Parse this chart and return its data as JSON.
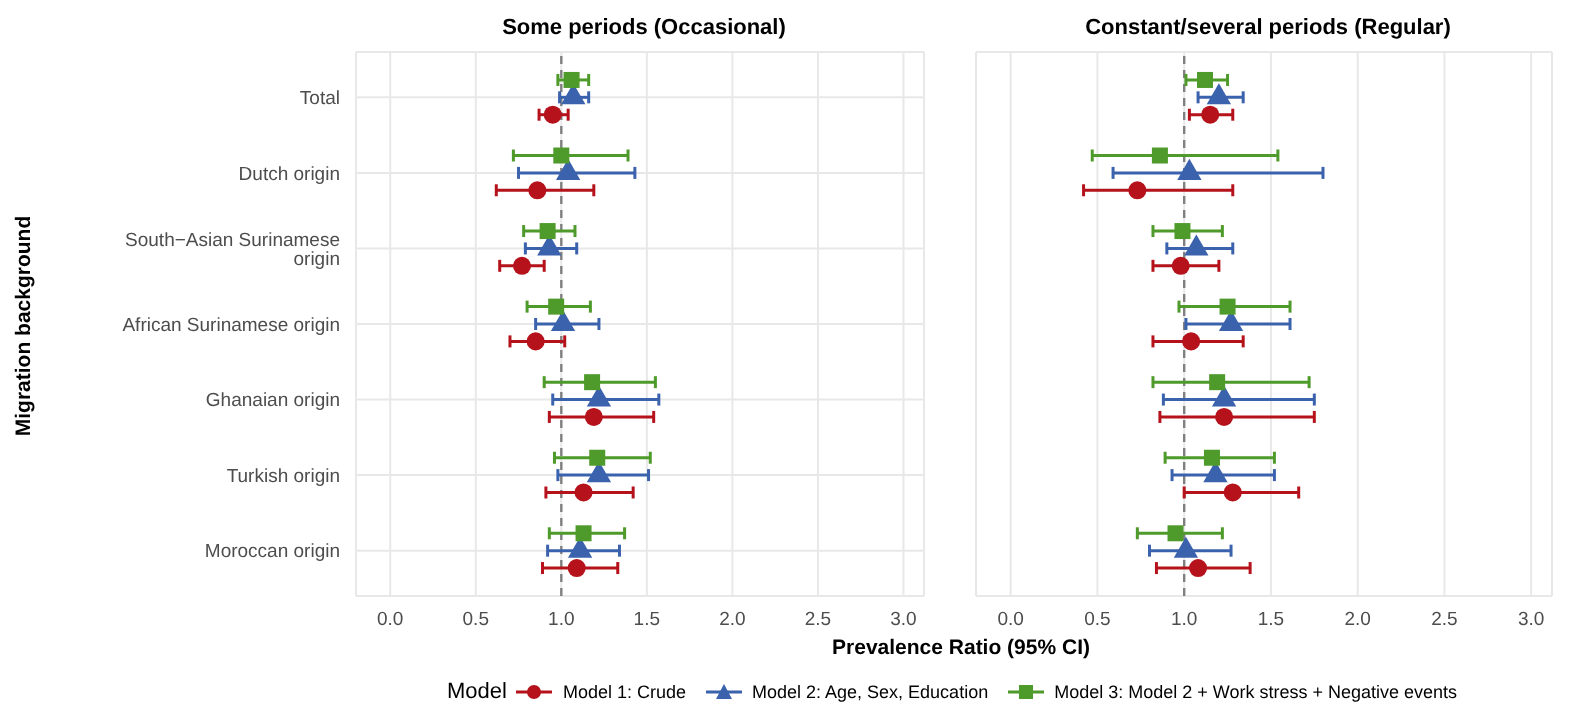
{
  "chart_data": [
    {
      "type": "scatter",
      "orientation": "horizontal",
      "title": "Some periods (Occasional)",
      "xlabel": "Prevalence Ratio (95% CI)",
      "ylabel": "Migration background",
      "legend_title": "Model",
      "legend": "bottom",
      "grid": true,
      "categories": [
        "Total",
        "Dutch origin",
        "South−Asian Surinamese origin",
        "African Surinamese origin",
        "Ghanaian origin",
        "Turkish origin",
        "Moroccan origin"
      ],
      "xlim": [
        -0.2,
        3.12
      ],
      "xticks": [
        {
          "value": 0,
          "label": "0.0"
        },
        {
          "value": 0.5,
          "label": "0.5"
        },
        {
          "value": 1,
          "label": "1.0"
        },
        {
          "value": 1.5,
          "label": "1.5"
        },
        {
          "value": 2,
          "label": "2.0"
        },
        {
          "value": 2.5,
          "label": "2.5"
        },
        {
          "value": 3,
          "label": "3.0"
        }
      ],
      "ref_lines": [
        {
          "axis": "x",
          "value": 1,
          "line_style": "dashed",
          "color": "#808080"
        }
      ],
      "series": [
        {
          "name": "Model 1: Crude",
          "color": "#b5121b",
          "marker": "circle",
          "values": [
            0.95,
            0.86,
            0.77,
            0.85,
            1.19,
            1.13,
            1.09
          ],
          "errors": [
            [
              0.87,
              1.04
            ],
            [
              0.62,
              1.19
            ],
            [
              0.64,
              0.9
            ],
            [
              0.7,
              1.02
            ],
            [
              0.93,
              1.54
            ],
            [
              0.91,
              1.42
            ],
            [
              0.89,
              1.33
            ]
          ]
        },
        {
          "name": "Model 2: Age, Sex, Education",
          "color": "#3b62ad",
          "marker": "triangle",
          "values": [
            1.07,
            1.04,
            0.93,
            1.01,
            1.22,
            1.22,
            1.11
          ],
          "errors": [
            [
              0.99,
              1.16
            ],
            [
              0.75,
              1.43
            ],
            [
              0.79,
              1.09
            ],
            [
              0.85,
              1.22
            ],
            [
              0.95,
              1.57
            ],
            [
              0.98,
              1.51
            ],
            [
              0.92,
              1.34
            ]
          ]
        },
        {
          "name": "Model 3: Model 2 + Work stress + Negative events",
          "color": "#4e9a2a",
          "marker": "square",
          "values": [
            1.06,
            1.0,
            0.92,
            0.97,
            1.18,
            1.21,
            1.13
          ],
          "errors": [
            [
              0.98,
              1.16
            ],
            [
              0.72,
              1.39
            ],
            [
              0.78,
              1.08
            ],
            [
              0.8,
              1.17
            ],
            [
              0.9,
              1.55
            ],
            [
              0.96,
              1.52
            ],
            [
              0.93,
              1.37
            ]
          ]
        }
      ]
    },
    {
      "type": "scatter",
      "orientation": "horizontal",
      "title": "Constant/several periods (Regular)",
      "grid": true,
      "tick_labels": "x",
      "xlim": [
        -0.2,
        3.12
      ],
      "xticks": [
        {
          "value": 0,
          "label": "0.0"
        },
        {
          "value": 0.5,
          "label": "0.5"
        },
        {
          "value": 1,
          "label": "1.0"
        },
        {
          "value": 1.5,
          "label": "1.5"
        },
        {
          "value": 2,
          "label": "2.0"
        },
        {
          "value": 2.5,
          "label": "2.5"
        },
        {
          "value": 3,
          "label": "3.0"
        }
      ],
      "ref_lines": [
        {
          "axis": "x",
          "value": 1,
          "line_style": "dashed",
          "color": "#808080"
        }
      ],
      "series": [
        {
          "color": "#b5121b",
          "marker": "circle",
          "values": [
            1.15,
            0.73,
            0.98,
            1.04,
            1.23,
            1.28,
            1.08
          ],
          "errors": [
            [
              1.03,
              1.28
            ],
            [
              0.42,
              1.28
            ],
            [
              0.82,
              1.2
            ],
            [
              0.82,
              1.34
            ],
            [
              0.86,
              1.75
            ],
            [
              1.0,
              1.66
            ],
            [
              0.84,
              1.38
            ]
          ]
        },
        {
          "color": "#3b62ad",
          "marker": "triangle",
          "values": [
            1.2,
            1.03,
            1.07,
            1.27,
            1.23,
            1.18,
            1.01
          ],
          "errors": [
            [
              1.08,
              1.34
            ],
            [
              0.59,
              1.8
            ],
            [
              0.9,
              1.28
            ],
            [
              1.01,
              1.61
            ],
            [
              0.88,
              1.75
            ],
            [
              0.93,
              1.52
            ],
            [
              0.8,
              1.27
            ]
          ]
        },
        {
          "color": "#4e9a2a",
          "marker": "square",
          "values": [
            1.12,
            0.86,
            0.99,
            1.25,
            1.19,
            1.16,
            0.95
          ],
          "errors": [
            [
              1.01,
              1.25
            ],
            [
              0.47,
              1.54
            ],
            [
              0.82,
              1.22
            ],
            [
              0.97,
              1.61
            ],
            [
              0.82,
              1.72
            ],
            [
              0.89,
              1.52
            ],
            [
              0.73,
              1.22
            ]
          ]
        }
      ]
    }
  ]
}
